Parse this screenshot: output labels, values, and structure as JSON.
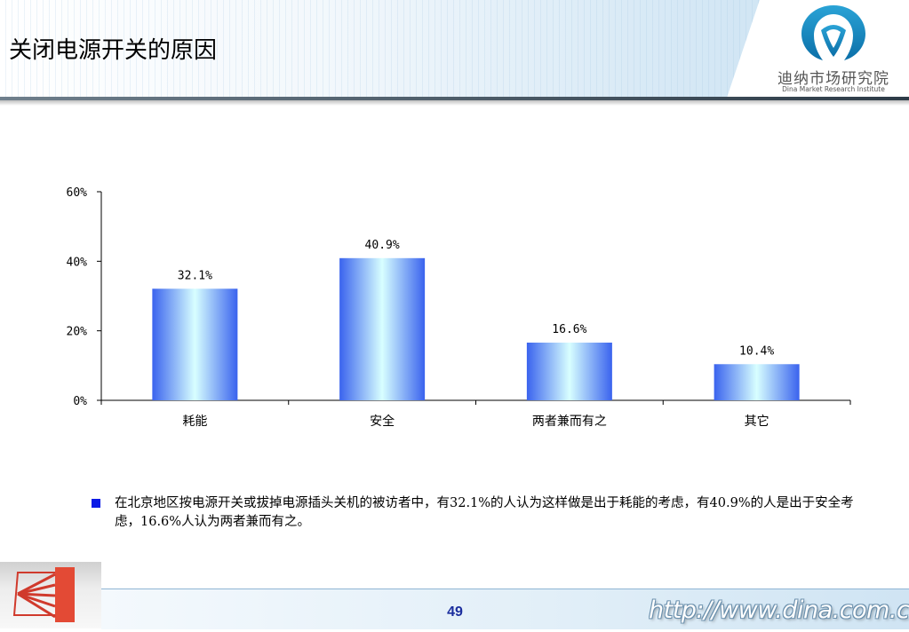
{
  "header": {
    "title": "关闭电源开关的原因",
    "logo_cn": "迪纳市场研究院",
    "logo_en": "Dina Market Research Institute"
  },
  "chart_data": {
    "type": "bar",
    "categories": [
      "耗能",
      "安全",
      "两者兼而有之",
      "其它"
    ],
    "values": [
      32.1,
      40.9,
      16.6,
      10.4
    ],
    "value_labels": [
      "32.1%",
      "40.9%",
      "16.6%",
      "10.4%"
    ],
    "y_ticks": [
      "0%",
      "20%",
      "40%",
      "60%"
    ],
    "ylim": [
      0,
      60
    ],
    "title": "",
    "xlabel": "",
    "ylabel": "",
    "grid": false,
    "legend": "none",
    "bar_colors": {
      "edge": "#3a63ee",
      "center": "#d8ffff"
    }
  },
  "note": {
    "text": "在北京地区按电源开关或拔掉电源插头关机的被访者中，有32.1%的人认为这样做是出于耗能的考虑，有40.9%的人是出于安全考虑，16.6%人认为两者兼而有之。"
  },
  "footer": {
    "page_number": "49",
    "website": "http://www.dina.com.cn",
    "accent_color": "#1b2e9e"
  }
}
